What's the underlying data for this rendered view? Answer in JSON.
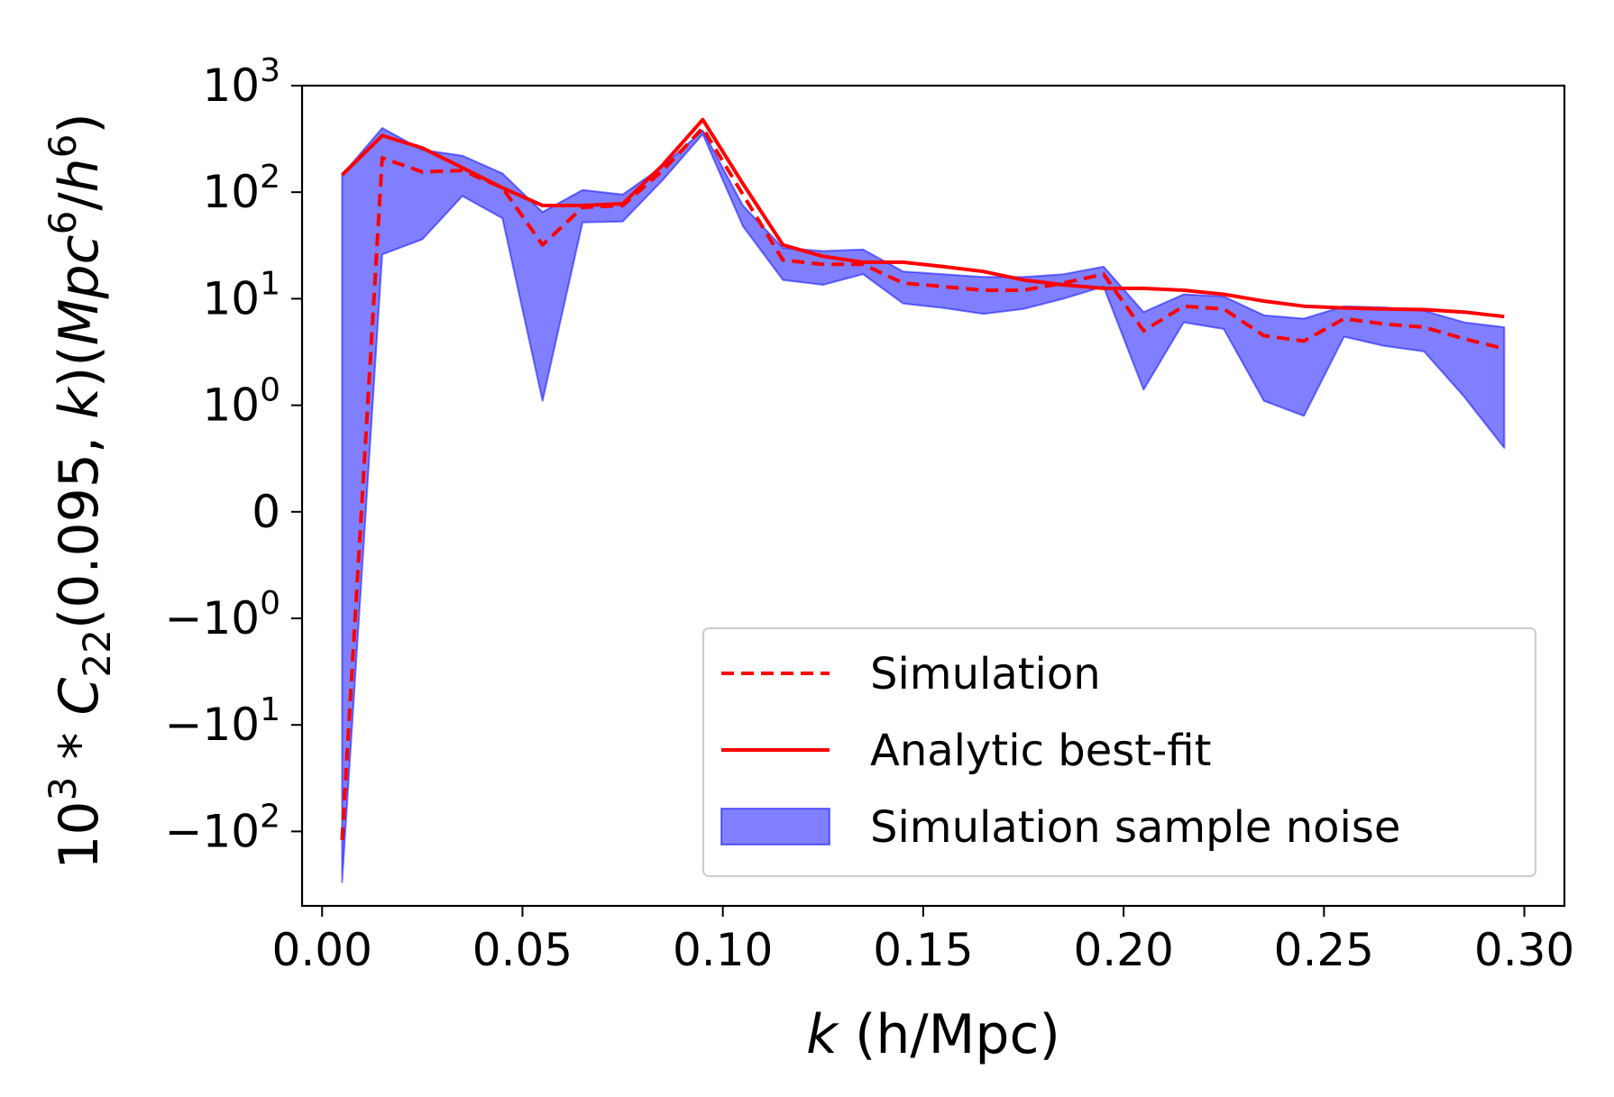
{
  "chart_data": {
    "type": "line",
    "xlabel": {
      "italic": "k",
      "rest": " (h/Mpc)"
    },
    "ylabel": "10^3 * C_22(0.095, k)(Mpc^6/h^6)",
    "xlim": [
      -0.005,
      0.31
    ],
    "y_scale": "symlog",
    "y_linthresh": 1,
    "ylim": [
      -500,
      1000
    ],
    "x_ticks": [
      {
        "value": 0.0,
        "label": "0.00"
      },
      {
        "value": 0.05,
        "label": "0.05"
      },
      {
        "value": 0.1,
        "label": "0.10"
      },
      {
        "value": 0.15,
        "label": "0.15"
      },
      {
        "value": 0.2,
        "label": "0.20"
      },
      {
        "value": 0.25,
        "label": "0.25"
      },
      {
        "value": 0.3,
        "label": "0.30"
      }
    ],
    "y_ticks": [
      {
        "value": 1000,
        "sign": "",
        "base": "10",
        "exp": "3"
      },
      {
        "value": 100,
        "sign": "",
        "base": "10",
        "exp": "2"
      },
      {
        "value": 10,
        "sign": "",
        "base": "10",
        "exp": "1"
      },
      {
        "value": 1,
        "sign": "",
        "base": "10",
        "exp": "0"
      },
      {
        "value": 0,
        "sign": "",
        "base": "0",
        "exp": ""
      },
      {
        "value": -1,
        "sign": "−",
        "base": "10",
        "exp": "0"
      },
      {
        "value": -10,
        "sign": "−",
        "base": "10",
        "exp": "1"
      },
      {
        "value": -100,
        "sign": "−",
        "base": "10",
        "exp": "2"
      }
    ],
    "x": [
      0.005,
      0.015,
      0.025,
      0.035,
      0.045,
      0.055,
      0.065,
      0.075,
      0.085,
      0.095,
      0.105,
      0.115,
      0.125,
      0.135,
      0.145,
      0.155,
      0.165,
      0.175,
      0.185,
      0.195,
      0.205,
      0.215,
      0.225,
      0.235,
      0.245,
      0.255,
      0.265,
      0.275,
      0.285,
      0.295
    ],
    "series": [
      {
        "name": "Simulation",
        "style": "dashed",
        "color": "#ff0000",
        "values": [
          -120,
          210,
          155,
          160,
          110,
          32,
          72,
          75,
          160,
          400,
          95,
          23,
          21,
          21,
          14,
          13,
          12,
          12,
          14,
          17,
          5.0,
          8.5,
          8.0,
          4.5,
          4.0,
          6.5,
          5.8,
          5.4,
          4.2,
          3.4
        ]
      },
      {
        "name": "Analytic best-fit",
        "style": "solid",
        "color": "#ff0000",
        "values": [
          145,
          340,
          260,
          170,
          110,
          75,
          75,
          78,
          180,
          480,
          120,
          32,
          25,
          22,
          22,
          20,
          18,
          15,
          13.5,
          12.5,
          12.5,
          12,
          11,
          9.5,
          8.5,
          8.2,
          8.0,
          7.9,
          7.5,
          6.8
        ]
      }
    ],
    "band": {
      "name": "Simulation sample noise",
      "color": "#0000ff",
      "opacity": 0.5,
      "upper": [
        145,
        400,
        250,
        220,
        150,
        65,
        105,
        95,
        175,
        380,
        75,
        30,
        28,
        29,
        18,
        17,
        16,
        16,
        17,
        20,
        7.5,
        11,
        10.5,
        7.0,
        6.5,
        8.5,
        8.3,
        7.7,
        6.0,
        5.4
      ],
      "lower": [
        -300,
        26,
        36,
        92,
        57,
        1.1,
        52,
        53,
        130,
        350,
        48,
        15,
        13.5,
        17,
        9,
        8.2,
        7.2,
        8,
        10,
        13,
        1.4,
        6.0,
        5.2,
        1.1,
        0.9,
        4.4,
        3.6,
        3.2,
        1.2,
        0.6
      ]
    },
    "legend_position": "lower-right"
  }
}
